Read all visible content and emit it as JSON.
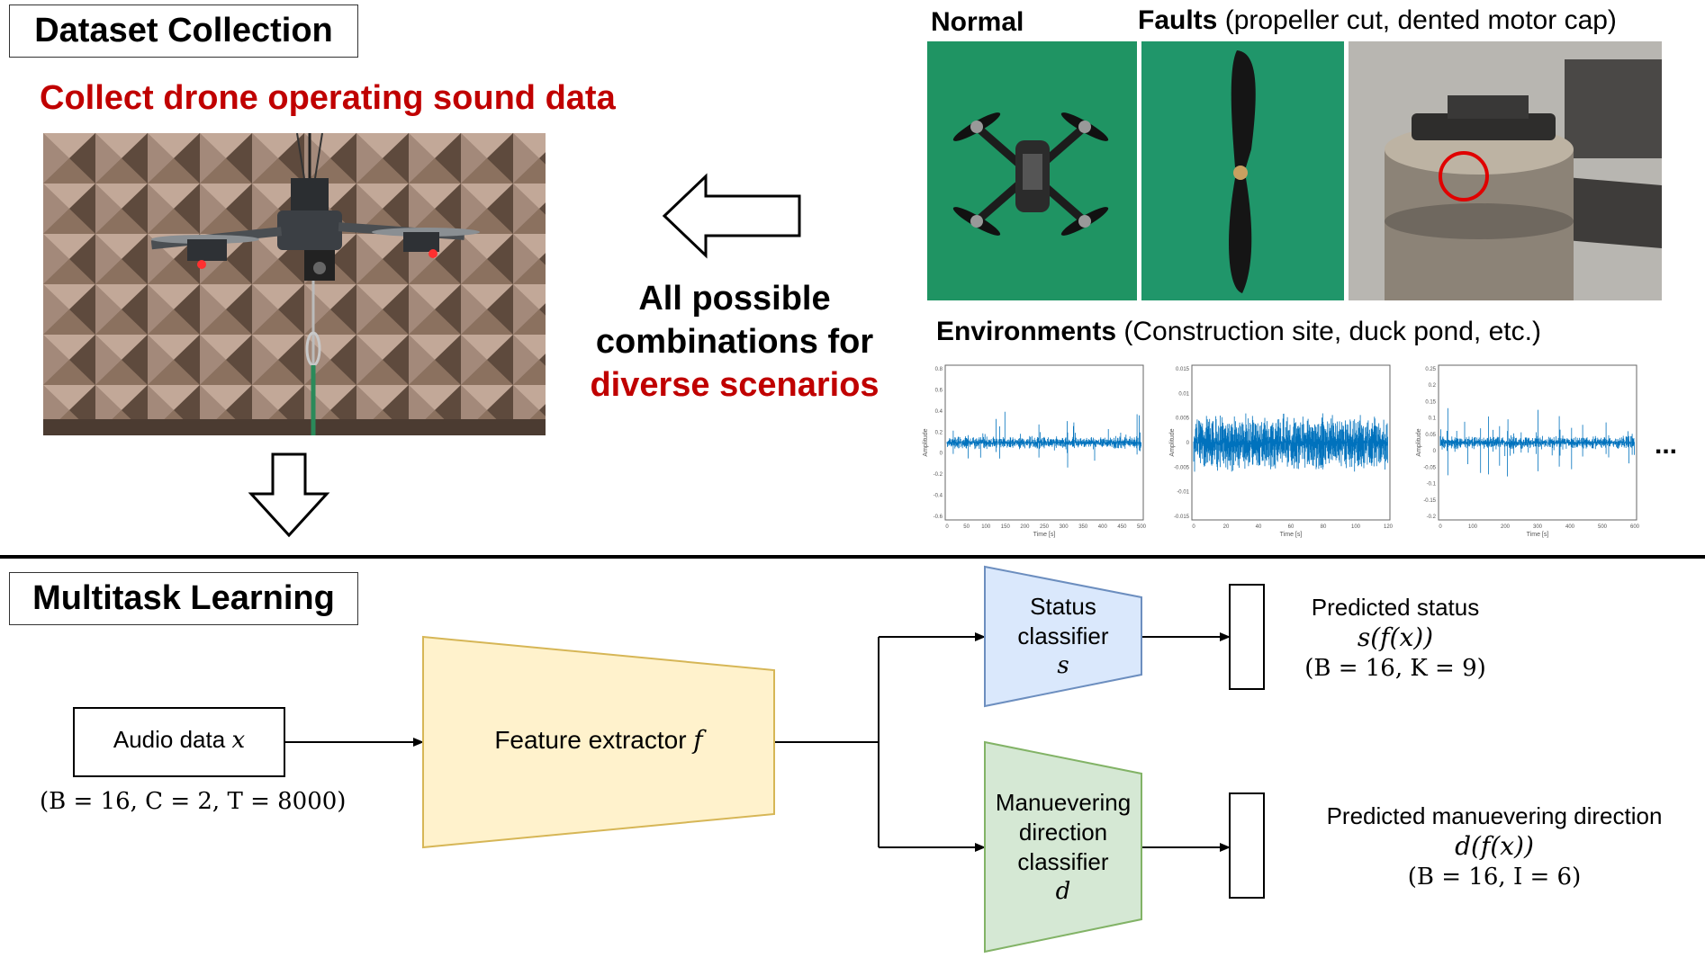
{
  "top": {
    "section_title": "Dataset Collection",
    "collect_caption": "Collect drone operating sound data",
    "combos_line1": "All possible",
    "combos_line2": "combinations for",
    "combos_line3": "diverse scenarios",
    "normal_label": "Normal",
    "faults_label": "Faults",
    "faults_detail": "(propeller cut, dented motor cap)",
    "env_label": "Environments",
    "env_detail": "(Construction site, duck pond, etc.)",
    "ellipsis": "..."
  },
  "bottom": {
    "section_title": "Multitask Learning",
    "audio_label": "Audio data",
    "audio_var": "x",
    "audio_dims": "(B = 16, C = 2, T = 8000)",
    "feature_label": "Feature extractor",
    "feature_var": "f",
    "status_line1": "Status",
    "status_line2": "classifier",
    "status_var": "s",
    "man_line1": "Manuevering",
    "man_line2": "direction",
    "man_line3": "classifier",
    "man_var": "d",
    "pred_status_label": "Predicted status",
    "pred_status_expr": "s(f(x))",
    "pred_status_dims": "(B = 16, K = 9)",
    "pred_dir_label": "Predicted manuevering direction",
    "pred_dir_expr": "d(f(x))",
    "pred_dir_dims": "(B = 16, I = 6)"
  },
  "waveforms": [
    {
      "ylabel": "Amplitude",
      "xlabel": "Time [s]",
      "yticks": [
        "0.8",
        "0.6",
        "0.4",
        "0.2",
        "0",
        "-0.2",
        "-0.4",
        "-0.6"
      ],
      "xticks": [
        "0",
        "50",
        "100",
        "150",
        "200",
        "250",
        "300",
        "350",
        "400",
        "450",
        "500"
      ]
    },
    {
      "ylabel": "Amplitude",
      "xlabel": "Time [s]",
      "yticks": [
        "0.015",
        "0.01",
        "0.005",
        "0",
        "-0.005",
        "-0.01",
        "-0.015"
      ],
      "xticks": [
        "0",
        "20",
        "40",
        "60",
        "80",
        "100",
        "120"
      ]
    },
    {
      "ylabel": "Amplitude",
      "xlabel": "Time [s]",
      "yticks": [
        "0.25",
        "0.2",
        "0.15",
        "0.1",
        "0.05",
        "0",
        "-0.05",
        "-0.1",
        "-0.15",
        "-0.2"
      ],
      "xticks": [
        "0",
        "100",
        "200",
        "300",
        "400",
        "500",
        "600"
      ]
    }
  ],
  "colors": {
    "caption_red": "#c00000",
    "feature_fill": "#fff2cc",
    "feature_stroke": "#d6b656",
    "status_fill": "#dae8fc",
    "status_stroke": "#6c8ebf",
    "direction_fill": "#d5e8d4",
    "direction_stroke": "#82b366",
    "wave_blue": "#0072bd",
    "photo_green": "#1a8a5a"
  }
}
